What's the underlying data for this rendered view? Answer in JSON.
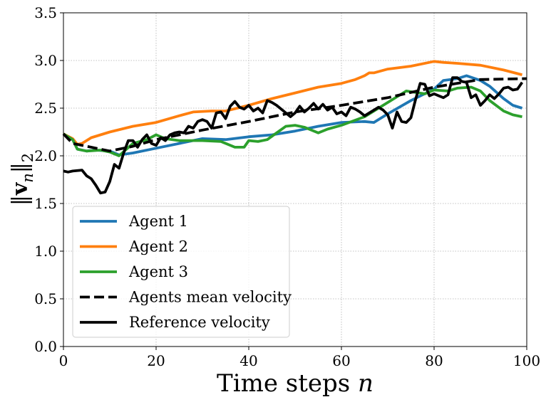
{
  "chart_data": {
    "type": "line",
    "title": "",
    "xlabel": "Time steps n",
    "xlabel_main": "Time steps",
    "xlabel_var": "n",
    "ylabel": "||v_n||_2",
    "xlim": [
      0,
      100
    ],
    "ylim": [
      0,
      3.5
    ],
    "xticks": [
      0,
      20,
      40,
      60,
      80,
      100
    ],
    "xtick_labels": [
      "0",
      "20",
      "40",
      "60",
      "80",
      "100"
    ],
    "yticks": [
      0,
      0.5,
      1,
      1.5,
      2,
      2.5,
      3,
      3.5
    ],
    "ytick_labels": [
      "0.0",
      "0.5",
      "1.0",
      "1.5",
      "2.0",
      "2.5",
      "3.0",
      "3.5"
    ],
    "grid": true,
    "legend_position": "lower-left",
    "series": [
      {
        "name": "Agent 1",
        "color": "#1f77b4",
        "style": "solid",
        "x": [
          0,
          2,
          3,
          5,
          7,
          10,
          12,
          15,
          20,
          25,
          30,
          35,
          40,
          45,
          50,
          55,
          60,
          65,
          67,
          70,
          75,
          80,
          82,
          85,
          87,
          90,
          92,
          95,
          97,
          99
        ],
        "y": [
          2.23,
          2.17,
          2.07,
          2.05,
          2.06,
          2.05,
          2.01,
          2.03,
          2.08,
          2.13,
          2.18,
          2.17,
          2.2,
          2.22,
          2.26,
          2.31,
          2.35,
          2.36,
          2.35,
          2.44,
          2.58,
          2.7,
          2.79,
          2.81,
          2.84,
          2.79,
          2.73,
          2.6,
          2.53,
          2.5
        ]
      },
      {
        "name": "Agent 2",
        "color": "#ff7f0e",
        "style": "solid",
        "x": [
          0,
          2,
          3,
          4,
          6,
          10,
          15,
          20,
          25,
          28,
          32,
          35,
          40,
          45,
          50,
          55,
          60,
          63,
          65,
          66,
          67,
          70,
          75,
          80,
          82,
          85,
          90,
          95,
          99
        ],
        "y": [
          2.23,
          2.18,
          2.12,
          2.13,
          2.19,
          2.25,
          2.31,
          2.35,
          2.42,
          2.46,
          2.47,
          2.47,
          2.53,
          2.6,
          2.66,
          2.72,
          2.76,
          2.8,
          2.84,
          2.87,
          2.87,
          2.91,
          2.94,
          2.99,
          2.98,
          2.97,
          2.95,
          2.9,
          2.85
        ]
      },
      {
        "name": "Agent 3",
        "color": "#2ca02c",
        "style": "solid",
        "x": [
          0,
          2,
          3,
          5,
          8,
          10,
          12,
          15,
          18,
          20,
          22,
          25,
          30,
          34,
          37,
          39,
          40,
          42,
          44,
          46,
          48,
          50,
          52,
          55,
          57,
          60,
          65,
          70,
          74,
          78,
          80,
          83,
          85,
          88,
          90,
          92,
          95,
          97,
          99
        ],
        "y": [
          2.23,
          2.17,
          2.07,
          2.05,
          2.06,
          2.04,
          2.0,
          2.13,
          2.17,
          2.22,
          2.18,
          2.16,
          2.16,
          2.15,
          2.09,
          2.09,
          2.16,
          2.15,
          2.17,
          2.24,
          2.31,
          2.32,
          2.3,
          2.24,
          2.28,
          2.32,
          2.41,
          2.56,
          2.68,
          2.65,
          2.69,
          2.68,
          2.71,
          2.72,
          2.68,
          2.58,
          2.47,
          2.43,
          2.41
        ]
      },
      {
        "name": "Agents mean velocity",
        "color": "#000000",
        "style": "dashed",
        "x": [
          0,
          2,
          5,
          10,
          15,
          20,
          25,
          30,
          40,
          50,
          60,
          70,
          80,
          90,
          100
        ],
        "y": [
          2.23,
          2.13,
          2.1,
          2.05,
          2.1,
          2.17,
          2.22,
          2.27,
          2.36,
          2.46,
          2.53,
          2.61,
          2.72,
          2.8,
          2.81
        ]
      },
      {
        "name": "Reference velocity",
        "color": "#000000",
        "style": "solid",
        "x": [
          0,
          1,
          2,
          4,
          5,
          6,
          7,
          8,
          9,
          10,
          11,
          12,
          13,
          14,
          15,
          16,
          17,
          18,
          19,
          20,
          21,
          22,
          23,
          24,
          25,
          26,
          27,
          28,
          29,
          30,
          31,
          32,
          33,
          34,
          35,
          36,
          37,
          38,
          39,
          40,
          41,
          42,
          43,
          44,
          45,
          46,
          47,
          48,
          49,
          50,
          51,
          52,
          53,
          54,
          55,
          56,
          57,
          58,
          59,
          60,
          61,
          62,
          63,
          64,
          65,
          66,
          67,
          68,
          69,
          70,
          71,
          72,
          73,
          74,
          75,
          76,
          77,
          78,
          79,
          80,
          81,
          82,
          83,
          84,
          85,
          86,
          87,
          88,
          89,
          90,
          91,
          92,
          93,
          94,
          95,
          96,
          97,
          98,
          99
        ],
        "y": [
          1.84,
          1.83,
          1.84,
          1.85,
          1.79,
          1.76,
          1.69,
          1.61,
          1.62,
          1.73,
          1.91,
          1.87,
          2.03,
          2.16,
          2.16,
          2.09,
          2.17,
          2.22,
          2.13,
          2.11,
          2.19,
          2.16,
          2.22,
          2.24,
          2.25,
          2.24,
          2.31,
          2.29,
          2.36,
          2.38,
          2.36,
          2.29,
          2.45,
          2.46,
          2.39,
          2.52,
          2.57,
          2.51,
          2.49,
          2.53,
          2.47,
          2.5,
          2.45,
          2.58,
          2.56,
          2.53,
          2.49,
          2.45,
          2.41,
          2.45,
          2.52,
          2.46,
          2.5,
          2.55,
          2.49,
          2.54,
          2.48,
          2.51,
          2.44,
          2.46,
          2.42,
          2.51,
          2.49,
          2.46,
          2.42,
          2.45,
          2.48,
          2.51,
          2.48,
          2.43,
          2.29,
          2.46,
          2.36,
          2.35,
          2.4,
          2.59,
          2.76,
          2.75,
          2.63,
          2.65,
          2.63,
          2.61,
          2.64,
          2.82,
          2.82,
          2.78,
          2.77,
          2.61,
          2.64,
          2.53,
          2.58,
          2.64,
          2.6,
          2.65,
          2.71,
          2.72,
          2.69,
          2.7,
          2.77
        ]
      }
    ]
  }
}
